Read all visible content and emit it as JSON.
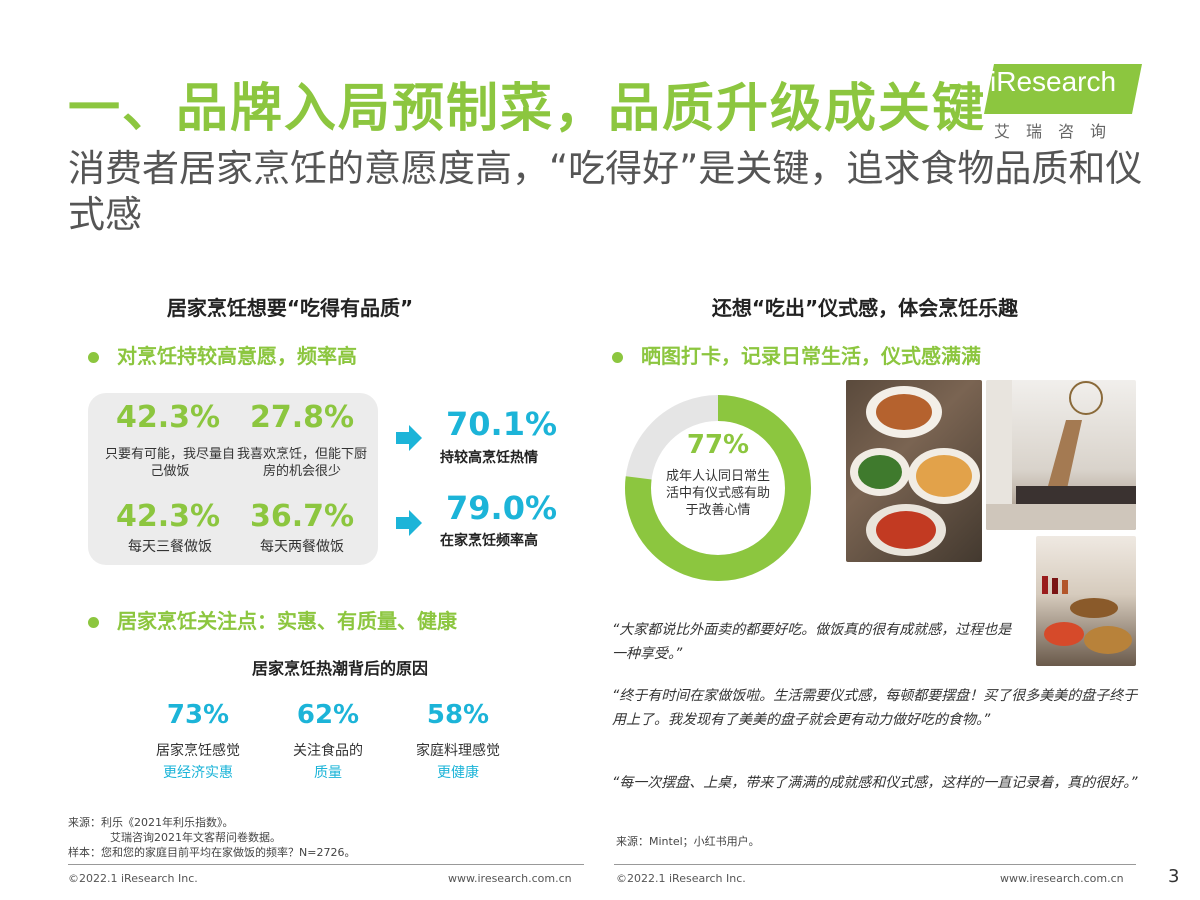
{
  "header": {
    "title": "一、品牌入局预制菜，品质升级成关键",
    "subtitle": "消费者居家烹饪的意愿度高，“吃得好”是关键，追求食物品质和仪式感",
    "logo_text": "iResearch",
    "logo_cn": "艾瑞咨询",
    "brand_color": "#8cc63f"
  },
  "left": {
    "section_title": "居家烹饪想要“吃得有品质”",
    "bullet1": "对烹饪持较高意愿，频率高",
    "stats": [
      {
        "value": "42.3%",
        "label": "只要有可能，我尽量自己做饭"
      },
      {
        "value": "27.8%",
        "label": "我喜欢烹饪，但能下厨房的机会很少"
      },
      {
        "value": "42.3%",
        "label": "每天三餐做饭"
      },
      {
        "value": "36.7%",
        "label": "每天两餐做饭"
      }
    ],
    "results": [
      {
        "value": "70.1%",
        "label": "持较高烹饪热情"
      },
      {
        "value": "79.0%",
        "label": "在家烹饪频率高"
      }
    ],
    "bullet2": "居家烹饪关注点：实惠、有质量、健康",
    "reasons_title": "居家烹饪热潮背后的原因",
    "reasons": [
      {
        "value": "73%",
        "label": "居家烹饪感觉",
        "highlight": "更经济实惠"
      },
      {
        "value": "62%",
        "label": "关注食品的",
        "highlight": "质量"
      },
      {
        "value": "58%",
        "label": "家庭料理感觉",
        "highlight": "更健康"
      }
    ],
    "source_line1": "来源：利乐《2021年利乐指数》。",
    "source_line2": "艾瑞咨询2021年文客帮问卷数据。",
    "source_line3": "样本：您和您的家庭目前平均在家做饭的频率？N=2726。",
    "footer_left": "©2022.1 iResearch Inc.",
    "footer_right": "www.iresearch.com.cn"
  },
  "right": {
    "section_title": "还想“吃出”仪式感，体会烹饪乐趣",
    "bullet": "晒图打卡，记录日常生活，仪式感满满",
    "donut": {
      "value": "77%",
      "fraction": 0.77,
      "label": "成年人认同日常生活中有仪式感有助于改善心情"
    },
    "quotes": [
      "“大家都说比外面卖的都要好吃。做饭真的很有成就感，过程也是一种享受。”",
      "“终于有时间在家做饭啦。生活需要仪式感，每顿都要摆盘！买了很多美美的盘子终于用上了。我发现有了美美的盘子就会更有动力做好吃的食物。”",
      "“每一次摆盘、上桌，带来了满满的成就感和仪式感，这样的一直记录着，真的很好。”"
    ],
    "source": "来源：Mintel；小红书用户。",
    "footer_left": "©2022.1 iResearch Inc.",
    "footer_right": "www.iresearch.com.cn"
  },
  "page_number": "3"
}
